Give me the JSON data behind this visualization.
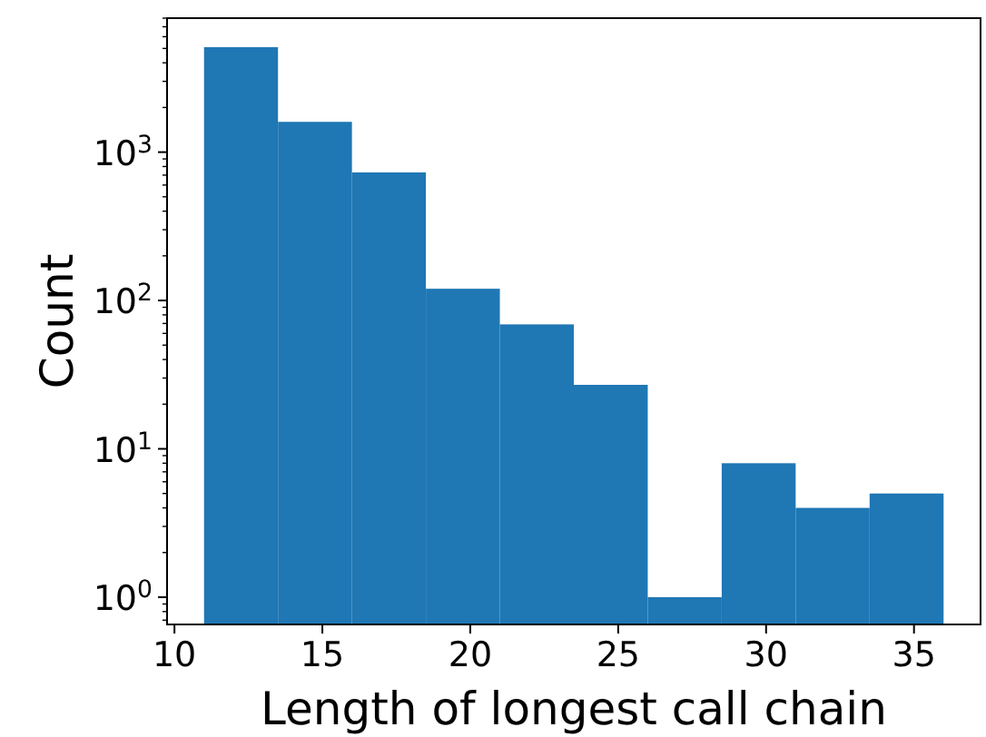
{
  "chart_data": {
    "type": "histogram",
    "xlabel": "Length of longest call chain",
    "ylabel": "Count",
    "bins": [
      11,
      13.5,
      16,
      18.5,
      21,
      23.5,
      26,
      28.5,
      31,
      33.5,
      36
    ],
    "values": [
      5100,
      1600,
      730,
      120,
      69,
      27,
      1,
      8,
      4,
      5
    ],
    "color": "#1f77b4",
    "log": "y",
    "grid": false,
    "xlim": [
      9.75,
      37.25
    ],
    "xticks": [
      10,
      15,
      20,
      25,
      30,
      35
    ],
    "ylim": [
      0.655,
      8000
    ],
    "yticks": [
      {
        "value": 0.7,
        "label": null
      },
      {
        "value": 0.8,
        "label": null
      },
      {
        "value": 0.9,
        "label": null
      },
      {
        "value": 1,
        "label": "10$^{0}$"
      },
      {
        "value": 2,
        "label": null
      },
      {
        "value": 3,
        "label": null
      },
      {
        "value": 4,
        "label": null
      },
      {
        "value": 5,
        "label": null
      },
      {
        "value": 6,
        "label": null
      },
      {
        "value": 7,
        "label": null
      },
      {
        "value": 8,
        "label": null
      },
      {
        "value": 9,
        "label": null
      },
      {
        "value": 10,
        "label": "10$^{1}$"
      },
      {
        "value": 20,
        "label": null
      },
      {
        "value": 30,
        "label": null
      },
      {
        "value": 40,
        "label": null
      },
      {
        "value": 50,
        "label": null
      },
      {
        "value": 60,
        "label": null
      },
      {
        "value": 70,
        "label": null
      },
      {
        "value": 80,
        "label": null
      },
      {
        "value": 90,
        "label": null
      },
      {
        "value": 100,
        "label": "10$^{2}$"
      },
      {
        "value": 200,
        "label": null
      },
      {
        "value": 300,
        "label": null
      },
      {
        "value": 400,
        "label": null
      },
      {
        "value": 500,
        "label": null
      },
      {
        "value": 600,
        "label": null
      },
      {
        "value": 700,
        "label": null
      },
      {
        "value": 800,
        "label": null
      },
      {
        "value": 900,
        "label": null
      },
      {
        "value": 1000,
        "label": "10$^{3}$"
      },
      {
        "value": 2000,
        "label": null
      },
      {
        "value": 3000,
        "label": null
      },
      {
        "value": 4000,
        "label": null
      },
      {
        "value": 5000,
        "label": null
      },
      {
        "value": 6000,
        "label": null
      },
      {
        "value": 7000,
        "label": null
      },
      {
        "value": 8000,
        "label": null
      }
    ]
  }
}
